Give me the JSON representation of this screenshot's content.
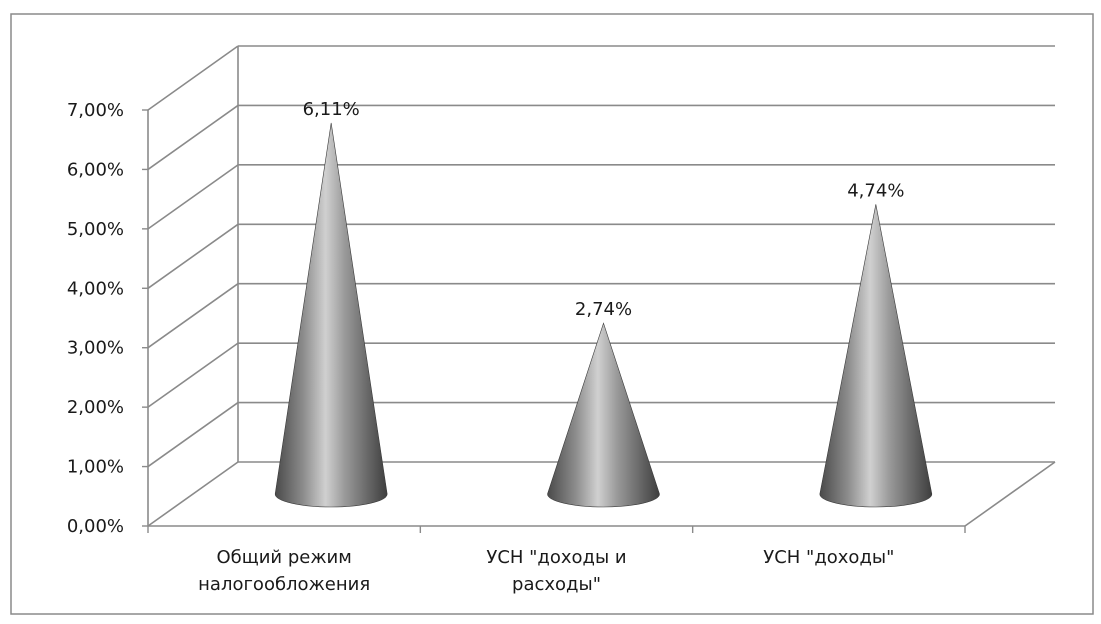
{
  "chart_data": {
    "type": "bar",
    "bar_shape": "cone",
    "categories": [
      [
        "Общий режим",
        "налогообложения"
      ],
      [
        "УСН \"доходы и",
        "расходы\""
      ],
      [
        "УСН \"доходы\""
      ]
    ],
    "values": [
      6.11,
      2.74,
      4.74
    ],
    "data_labels": [
      "6,11%",
      "2,74%",
      "4,74%"
    ],
    "ylim": [
      0,
      7
    ],
    "y_ticks": [
      {
        "value": 0,
        "label": "0,00%"
      },
      {
        "value": 1,
        "label": "1,00%"
      },
      {
        "value": 2,
        "label": "2,00%"
      },
      {
        "value": 3,
        "label": "3,00%"
      },
      {
        "value": 4,
        "label": "4,00%"
      },
      {
        "value": 5,
        "label": "5,00%"
      },
      {
        "value": 6,
        "label": "6,00%"
      },
      {
        "value": 7,
        "label": "7,00%"
      }
    ],
    "title": "",
    "xlabel": "",
    "ylabel": "",
    "grid": true,
    "legend": "none",
    "colors": {
      "bar": "#8c8c8c",
      "bar_highlight": "#d0d0d0",
      "bar_shadow": "#4a4a4a",
      "grid": "#8a8a8a",
      "text": "#1a1a1a",
      "frame": "#8a8a8a"
    }
  }
}
